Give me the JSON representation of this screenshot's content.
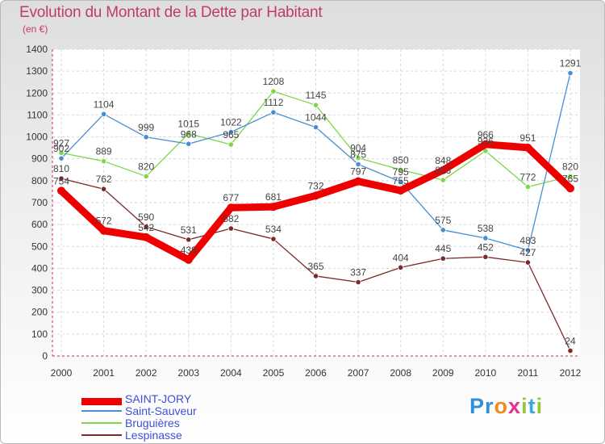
{
  "title": "Evolution du Montant de la Dette par Habitant",
  "unit": "(en €)",
  "logo": "Proxiti",
  "chart_data": {
    "type": "line",
    "title": "Evolution du Montant de la Dette par Habitant",
    "ylabel": "(en €)",
    "xlabel": "",
    "x": [
      "2000",
      "2001",
      "2002",
      "2003",
      "2004",
      "2005",
      "2006",
      "2007",
      "2008",
      "2009",
      "2010",
      "2011",
      "2012"
    ],
    "ylim": [
      0,
      1400
    ],
    "yticks": [
      0,
      100,
      200,
      300,
      400,
      500,
      600,
      700,
      800,
      900,
      1000,
      1100,
      1200,
      1300,
      1400
    ],
    "grid": true,
    "legend": "bottom-left",
    "series": [
      {
        "name": "Lespinasse",
        "color": "#7a2a2a",
        "values": [
          810,
          762,
          590,
          531,
          582,
          534,
          365,
          337,
          404,
          445,
          452,
          427,
          24
        ]
      },
      {
        "name": "Bruguières",
        "color": "#7ed64a",
        "values": [
          927,
          889,
          820,
          1015,
          965,
          1208,
          1145,
          904,
          850,
          803,
          936,
          772,
          820
        ]
      },
      {
        "name": "Saint-Sauveur",
        "color": "#4a8ed0",
        "values": [
          902,
          1104,
          999,
          968,
          1022,
          1112,
          1044,
          875,
          795,
          575,
          538,
          483,
          1291
        ]
      },
      {
        "name": "SAINT-JORY",
        "color": "#ee0000",
        "values": [
          754,
          572,
          542,
          439,
          677,
          681,
          732,
          797,
          755,
          848,
          966,
          951,
          765
        ]
      }
    ],
    "labels": {
      "Lespinasse": [
        "810",
        "762",
        "590",
        "531",
        "582",
        "534",
        "365",
        "337",
        "404",
        "445",
        "452",
        "427",
        "24"
      ],
      "Bruguières": [
        "927",
        "889",
        "820",
        "1015",
        "965",
        "1208",
        "1145",
        "904",
        "850",
        "803",
        "936",
        "772",
        "820"
      ],
      "Saint-Sauveur": [
        "902",
        "1104",
        "999",
        "968",
        "1022",
        "1112",
        "1044",
        "875",
        "795",
        "575",
        "538",
        "483",
        "1291"
      ],
      "SAINT-JORY": [
        "754",
        "572",
        "542",
        "439",
        "677",
        "681",
        "732",
        "797",
        "755",
        "848",
        "966",
        "951",
        "765"
      ]
    }
  },
  "legend": [
    {
      "name": "SAINT-JORY",
      "color": "#ee0000"
    },
    {
      "name": "Saint-Sauveur",
      "color": "#4a8ed0"
    },
    {
      "name": "Bruguières",
      "color": "#7ed64a"
    },
    {
      "name": "Lespinasse",
      "color": "#7a2a2a"
    }
  ]
}
